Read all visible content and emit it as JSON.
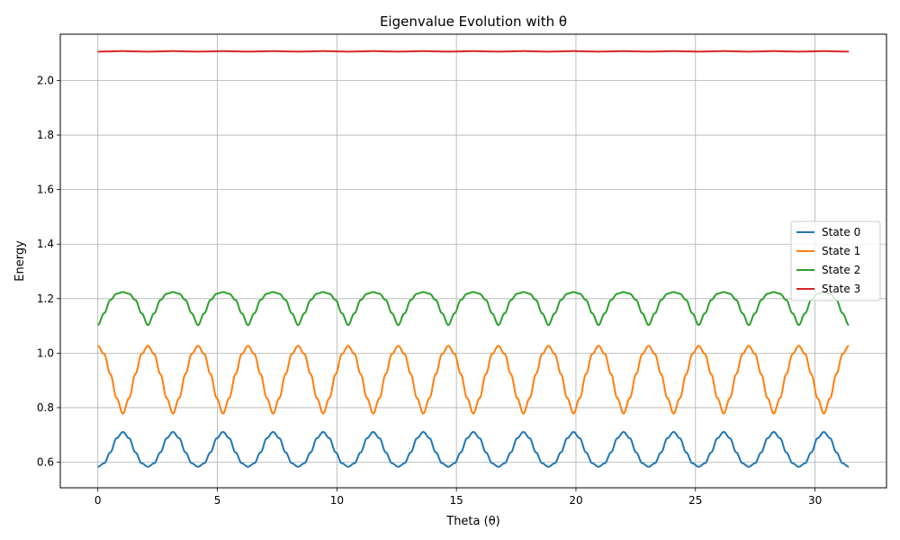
{
  "chart_data": {
    "type": "line",
    "title": "Eigenvalue Evolution with θ",
    "xlabel": "Theta (θ)",
    "ylabel": "Energy",
    "xlim": [
      -1.57,
      32.99
    ],
    "ylim": [
      0.506,
      2.17
    ],
    "xticks": [
      0,
      5,
      10,
      15,
      20,
      25,
      30
    ],
    "yticks": [
      0.6,
      0.8,
      1.0,
      1.2,
      1.4,
      1.6,
      1.8,
      2.0
    ],
    "ytick_labels": [
      "0.6",
      "0.8",
      "1.0",
      "1.2",
      "1.4",
      "1.6",
      "1.8",
      "2.0"
    ],
    "grid": true,
    "legend_position": "center-right",
    "x_range": [
      0,
      31.4159
    ],
    "period": 2.0944,
    "series": [
      {
        "name": "State 0",
        "color": "#1f77b4",
        "phase_theta": [
          0,
          0.2618,
          0.5236,
          0.7854,
          1.0472,
          1.309,
          1.5708,
          1.8326,
          2.0944
        ],
        "values": [
          0.583,
          0.596,
          0.636,
          0.688,
          0.711,
          0.688,
          0.636,
          0.596,
          0.583
        ]
      },
      {
        "name": "State 1",
        "color": "#ff7f0e",
        "phase_theta": [
          0,
          0.2618,
          0.5236,
          0.7854,
          1.0472,
          1.309,
          1.5708,
          1.8326,
          2.0944
        ],
        "values": [
          1.027,
          0.997,
          0.923,
          0.835,
          0.778,
          0.835,
          0.923,
          0.997,
          1.027
        ]
      },
      {
        "name": "State 2",
        "color": "#2ca02c",
        "phase_theta": [
          0,
          0.2618,
          0.5236,
          0.7854,
          1.0472,
          1.309,
          1.5708,
          1.8326,
          2.0944
        ],
        "values": [
          1.103,
          1.146,
          1.195,
          1.218,
          1.224,
          1.218,
          1.195,
          1.146,
          1.103
        ]
      },
      {
        "name": "State 3",
        "color": "#d62728",
        "phase_theta": [
          0,
          0.2618,
          0.5236,
          0.7854,
          1.0472,
          1.309,
          1.5708,
          1.8326,
          2.0944
        ],
        "values": [
          2.106,
          2.1065,
          2.107,
          2.1075,
          2.108,
          2.1075,
          2.107,
          2.1065,
          2.106
        ]
      }
    ]
  }
}
